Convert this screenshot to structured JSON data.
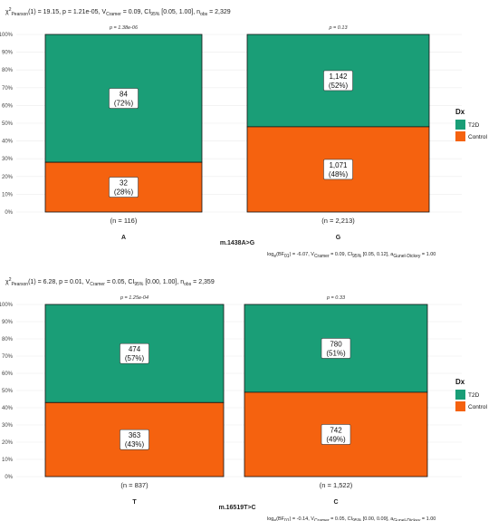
{
  "colors": {
    "T2D": "#1a9e77",
    "Control": "#f5620f"
  },
  "legend": {
    "title": "Dx",
    "items": [
      "T2D",
      "Control"
    ]
  },
  "chart_data": [
    {
      "type": "bar",
      "stacked": true,
      "percent": true,
      "header": {
        "stat_value": "(1) = 19.15,",
        "p": "p = 1.21e-05,",
        "cramer": "= 0.09,",
        "ci": "[0.05, 1.00],",
        "nobs": "= 2,329"
      },
      "xlabel": "m.1438A>G",
      "categories": [
        "A",
        "G"
      ],
      "n_labels": [
        "(n = 116)",
        "(n = 2,213)"
      ],
      "p_labels": [
        "p = 1.38e-06",
        "p = 0.13"
      ],
      "yticks": [
        "0%",
        "10%",
        "20%",
        "30%",
        "40%",
        "50%",
        "60%",
        "70%",
        "80%",
        "90%",
        "100%"
      ],
      "series": [
        {
          "name": "T2D",
          "counts": [
            84,
            1142
          ],
          "values": [
            72,
            52
          ],
          "labels": [
            "84",
            "1,142"
          ],
          "pct_labels": [
            "(72%)",
            "(52%)"
          ]
        },
        {
          "name": "Control",
          "counts": [
            32,
            1071
          ],
          "values": [
            28,
            48
          ],
          "labels": [
            "32",
            "1,071"
          ],
          "pct_labels": [
            "(28%)",
            "(48%)"
          ]
        }
      ],
      "bayes": {
        "log": "log",
        "bf_tail": "(BF",
        "bf_val": ") = -6.07,",
        "post": "= 0.09,",
        "ci": "[0.05, 0.12],",
        "a": "= 1.00"
      }
    },
    {
      "type": "bar",
      "stacked": true,
      "percent": true,
      "header": {
        "stat_value": "(1) = 6.28,",
        "p": "p = 0.01,",
        "cramer": "= 0.05,",
        "ci": "[0.00, 1.00],",
        "nobs": "= 2,359"
      },
      "xlabel": "m.16519T>C",
      "categories": [
        "T",
        "C"
      ],
      "n_labels": [
        "(n = 837)",
        "(n = 1,522)"
      ],
      "p_labels": [
        "p = 1.25e-04",
        "p = 0.33"
      ],
      "yticks": [
        "0%",
        "10%",
        "20%",
        "30%",
        "40%",
        "50%",
        "60%",
        "70%",
        "80%",
        "90%",
        "100%"
      ],
      "series": [
        {
          "name": "T2D",
          "counts": [
            474,
            780
          ],
          "values": [
            57,
            51
          ],
          "labels": [
            "474",
            "780"
          ],
          "pct_labels": [
            "(57%)",
            "(51%)"
          ]
        },
        {
          "name": "Control",
          "counts": [
            363,
            742
          ],
          "values": [
            43,
            49
          ],
          "labels": [
            "363",
            "742"
          ],
          "pct_labels": [
            "(43%)",
            "(49%)"
          ]
        }
      ],
      "bayes": {
        "log": "log",
        "bf_tail": "(BF",
        "bf_val": ") = -0.14,",
        "post": "= 0.05,",
        "ci": "[0.00, 0.09],",
        "a": "= 1.00"
      }
    }
  ]
}
